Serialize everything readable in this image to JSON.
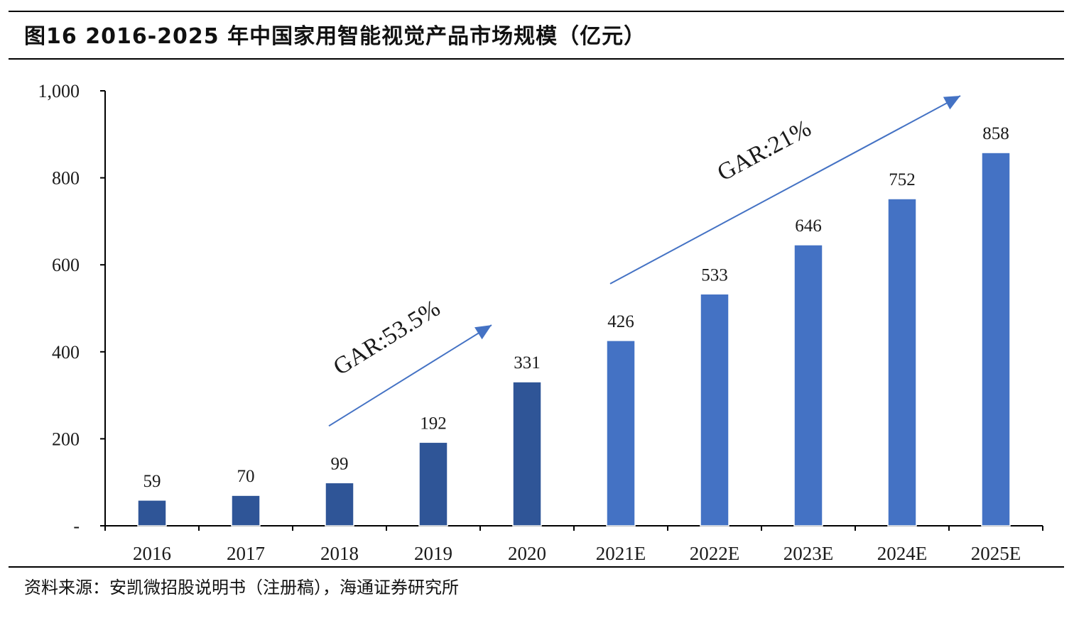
{
  "figure_title": "图16 2016-2025 年中国家用智能视觉产品市场规模（亿元）",
  "source_note": "资料来源：安凯微招股说明书（注册稿），海通证券研究所",
  "colors": {
    "bar_actual": "#2f5597",
    "bar_forecast": "#4472c4",
    "arrow": "#4472c4",
    "axis": "#000000"
  },
  "chart_data": {
    "type": "bar",
    "title": "",
    "xlabel": "",
    "ylabel": "",
    "categories": [
      "2016",
      "2017",
      "2018",
      "2019",
      "2020",
      "2021E",
      "2022E",
      "2023E",
      "2024E",
      "2025E"
    ],
    "values": [
      59,
      70,
      99,
      192,
      331,
      426,
      533,
      646,
      752,
      858
    ],
    "value_labels": [
      "59",
      "70",
      "99",
      "192",
      "331",
      "426",
      "533",
      "646",
      "752",
      "858"
    ],
    "forecast": [
      false,
      false,
      false,
      false,
      false,
      true,
      true,
      true,
      true,
      true
    ],
    "ylim": [
      0,
      1000
    ],
    "yticks": [
      0,
      200,
      400,
      600,
      800,
      1000
    ],
    "ytick_labels": [
      "-",
      "200",
      "400",
      "600",
      "800",
      "1,000"
    ],
    "grid": false,
    "legend": "none",
    "annotations": [
      {
        "text": "GAR:53.5%",
        "from_category": "2018",
        "to_category": "2020"
      },
      {
        "text": "GAR:21%",
        "from_category": "2021E",
        "to_category": "2025E"
      }
    ]
  }
}
